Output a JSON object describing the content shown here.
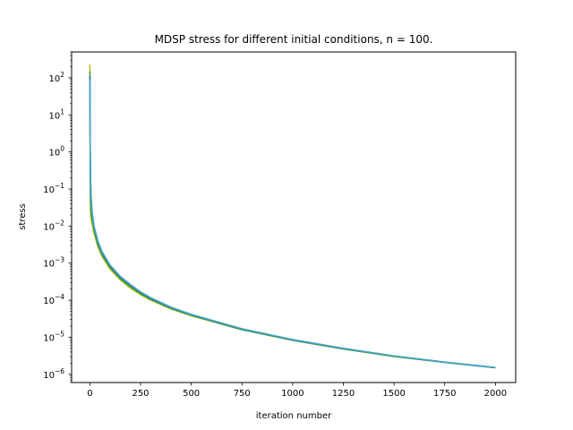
{
  "chart_data": {
    "type": "line",
    "title": "MDSP stress for different initial conditions, n = 100.",
    "xlabel": "iteration number",
    "ylabel": "stress",
    "xlim": [
      -90,
      2100
    ],
    "ylim": [
      6e-07,
      500
    ],
    "yscale": "log",
    "grid": false,
    "xticks": [
      0,
      250,
      500,
      750,
      1000,
      1250,
      1500,
      1750,
      2000
    ],
    "yticks": [
      {
        "value": 100.0,
        "base": "10",
        "exp": "2"
      },
      {
        "value": 10.0,
        "base": "10",
        "exp": "1"
      },
      {
        "value": 1.0,
        "base": "10",
        "exp": "0"
      },
      {
        "value": 0.1,
        "base": "10",
        "exp": "−1"
      },
      {
        "value": 0.01,
        "base": "10",
        "exp": "−2"
      },
      {
        "value": 0.001,
        "base": "10",
        "exp": "−3"
      },
      {
        "value": 0.0001,
        "base": "10",
        "exp": "−4"
      },
      {
        "value": 1e-05,
        "base": "10",
        "exp": "−5"
      },
      {
        "value": 1e-06,
        "base": "10",
        "exp": "−6"
      }
    ],
    "series": [
      {
        "color": "#bcbd22",
        "x": [
          0,
          1,
          2,
          3,
          5,
          10,
          20,
          40,
          60,
          100,
          150,
          200,
          250,
          300,
          400,
          500,
          750,
          1000,
          1250,
          1500,
          1750,
          2000
        ],
        "y": [
          230,
          1.0,
          0.05,
          0.02,
          0.017,
          0.012,
          0.0065,
          0.0027,
          0.0015,
          0.00068,
          0.00035,
          0.00021,
          0.00014,
          0.0001,
          5.8e-05,
          3.8e-05,
          1.6e-05,
          8.2e-06,
          4.8e-06,
          3e-06,
          2.1e-06,
          1.5e-06
        ]
      },
      {
        "color": "#2ca02c",
        "x": [
          0,
          1,
          2,
          3,
          5,
          10,
          20,
          40,
          60,
          100,
          150,
          200,
          250,
          300,
          400,
          500,
          750,
          1000,
          1250,
          1500,
          1750,
          2000
        ],
        "y": [
          150,
          2.0,
          0.15,
          0.06,
          0.028,
          0.016,
          0.0078,
          0.0031,
          0.0017,
          0.00075,
          0.00038,
          0.00023,
          0.00015,
          0.000105,
          6e-05,
          3.9e-05,
          1.6e-05,
          8.3e-06,
          4.85e-06,
          3.05e-06,
          2.1e-06,
          1.5e-06
        ]
      },
      {
        "color": "#7f7f7f",
        "x": [
          0,
          1,
          2,
          3,
          5,
          10,
          20,
          40,
          60,
          100,
          150,
          200,
          250,
          300,
          400,
          500,
          750,
          1000,
          1250,
          1500,
          1750,
          2000
        ],
        "y": [
          120,
          8.0,
          0.9,
          0.25,
          0.07,
          0.025,
          0.0095,
          0.0036,
          0.0019,
          0.00083,
          0.00041,
          0.00025,
          0.00016,
          0.000112,
          6.3e-05,
          4.05e-05,
          1.66e-05,
          8.5e-06,
          4.95e-06,
          3.1e-06,
          2.12e-06,
          1.51e-06
        ]
      },
      {
        "color": "#17becf",
        "x": [
          0,
          1,
          2,
          3,
          5,
          10,
          20,
          40,
          60,
          100,
          150,
          200,
          250,
          300,
          400,
          500,
          750,
          1000,
          1250,
          1500,
          1750,
          2000
        ],
        "y": [
          100,
          10.0,
          1.2,
          0.3,
          0.08,
          0.028,
          0.01,
          0.0038,
          0.002,
          0.00087,
          0.00043,
          0.00026,
          0.000165,
          0.000115,
          6.4e-05,
          4.1e-05,
          1.68e-05,
          8.6e-06,
          5e-06,
          3.12e-06,
          2.13e-06,
          1.52e-06
        ]
      },
      {
        "color": "#1f77b4",
        "x": [
          0,
          1,
          2,
          3,
          5,
          10,
          20,
          40,
          60,
          100,
          150,
          200,
          250,
          300,
          400,
          500,
          750,
          1000,
          1250,
          1500,
          1750,
          2000
        ],
        "y": [
          110,
          9.0,
          1.0,
          0.28,
          0.075,
          0.027,
          0.0098,
          0.0037,
          0.00195,
          0.00085,
          0.00042,
          0.000255,
          0.000162,
          0.000113,
          6.35e-05,
          4.08e-05,
          1.67e-05,
          8.55e-06,
          4.98e-06,
          3.11e-06,
          2.12e-06,
          1.51e-06
        ]
      },
      {
        "color": "#4da6c8",
        "x": [
          0,
          1,
          2,
          3,
          5,
          10,
          20,
          40,
          60,
          100,
          150,
          200,
          250,
          300,
          400,
          500,
          750,
          1000,
          1250,
          1500,
          1750,
          2000
        ],
        "y": [
          90,
          6.0,
          0.6,
          0.2,
          0.065,
          0.026,
          0.0102,
          0.0039,
          0.00205,
          0.00089,
          0.00044,
          0.000265,
          0.000168,
          0.000117,
          6.5e-05,
          4.15e-05,
          1.7e-05,
          8.7e-06,
          5.05e-06,
          3.15e-06,
          2.14e-06,
          1.53e-06
        ]
      }
    ]
  }
}
